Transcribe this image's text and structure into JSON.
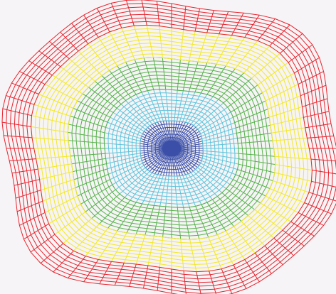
{
  "canvas": {
    "background": "#f6f4f6"
  },
  "mesh": {
    "type": "radial-wireframe-mesh",
    "spokes": 72,
    "bands": [
      {
        "name": "inner-core",
        "color": "#3b4fa8",
        "rings": 8
      },
      {
        "name": "light-blue",
        "color": "#5ec4dc",
        "rings": 9
      },
      {
        "name": "green",
        "color": "#56b34a",
        "rings": 9
      },
      {
        "name": "yellow",
        "color": "#f3e82a",
        "rings": 9
      },
      {
        "name": "red",
        "color": "#e8242e",
        "rings": 7
      }
    ]
  }
}
